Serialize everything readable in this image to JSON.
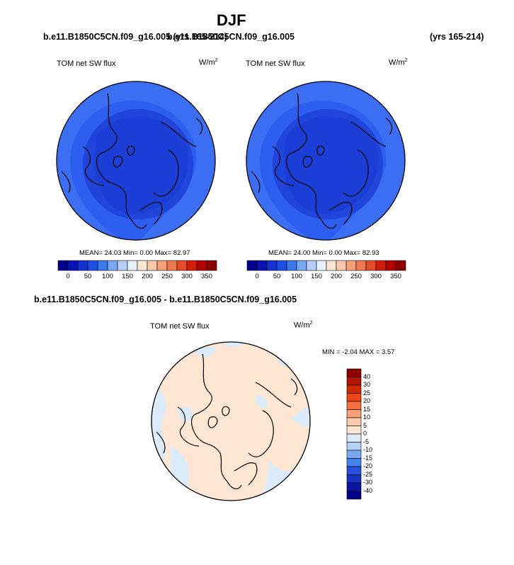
{
  "page_title": "DJF",
  "top_left_case": "b.e11.B1850C5CN.f09_g16.005 (yrs 165-214)",
  "top_right_case": "b.e11.B1850C5CN.f09_g16.005",
  "top_right_years": "(yrs 165-214)",
  "panels": [
    {
      "variable": "TOM net SW flux",
      "units_base": "W/m",
      "units_exp": "2",
      "stats": "MEAN= 24.03  Min=  0.00  Max= 82.97"
    },
    {
      "variable": "TOM net SW flux",
      "units_base": "W/m",
      "units_exp": "2",
      "stats": "MEAN= 24.00  Min=  0.00  Max= 82.93"
    }
  ],
  "diff_panel": {
    "title": "b.e11.B1850C5CN.f09_g16.005 - b.e11.B1850C5CN.f09_g16.005",
    "variable": "TOM net SW flux",
    "units_base": "W/m",
    "units_exp": "2",
    "stats": "MIN =  -2.04 MAX =   3.57"
  },
  "colorbar_h": {
    "labels": [
      "0",
      "50",
      "100",
      "150",
      "200",
      "250",
      "300",
      "350"
    ],
    "colors": [
      "#00008c",
      "#0a14b4",
      "#1432d2",
      "#1e50e6",
      "#3c78f0",
      "#78a8f5",
      "#b4d0fa",
      "#e6f0ff",
      "#ffe6d2",
      "#fac8aa",
      "#f5a078",
      "#f07850",
      "#e64b28",
      "#d21e0a",
      "#b40000",
      "#8c0000"
    ]
  },
  "colorbar_v": {
    "labels": [
      "40",
      "30",
      "25",
      "20",
      "15",
      "10",
      "5",
      "0",
      "-5",
      "-10",
      "-15",
      "-20",
      "-25",
      "-30",
      "-40"
    ],
    "colors": [
      "#8c0000",
      "#b41400",
      "#d22800",
      "#eb4614",
      "#f56e3c",
      "#f7a078",
      "#fac8aa",
      "#fde6d2",
      "#dcebfa",
      "#b4d2f5",
      "#78a8f0",
      "#4682eb",
      "#2850dc",
      "#1432be",
      "#0a14a0",
      "#00008c"
    ]
  }
}
